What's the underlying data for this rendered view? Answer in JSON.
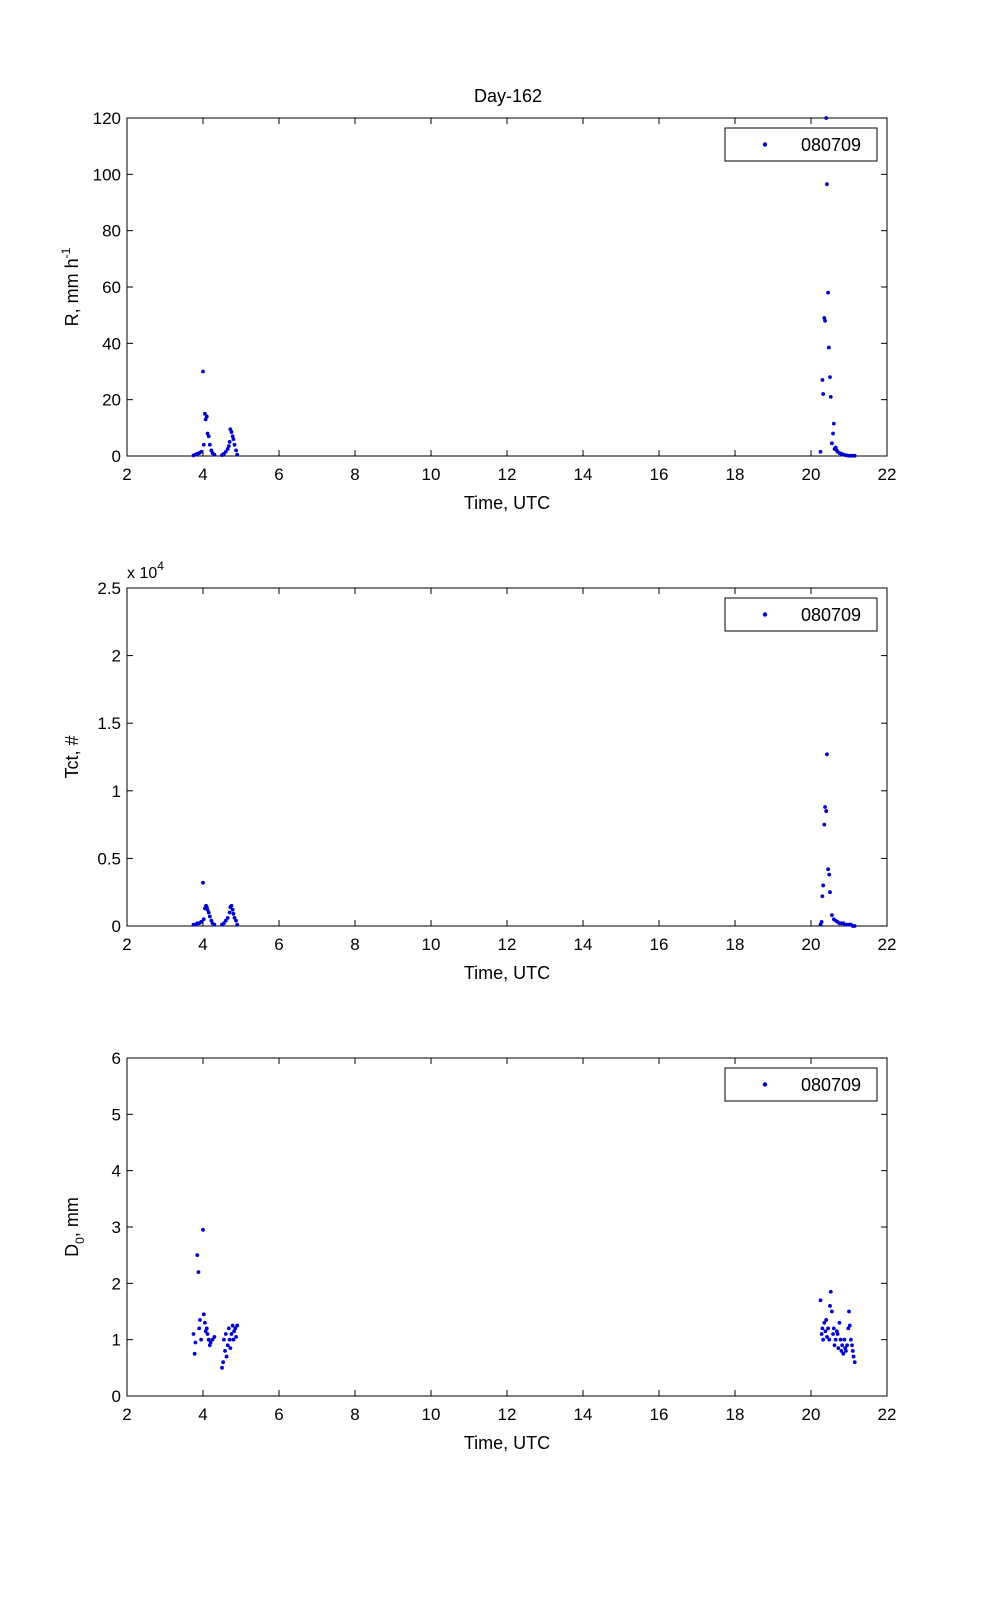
{
  "figure": {
    "title": "Day-162",
    "marker_color": "#0000cc"
  },
  "chart_data": [
    {
      "type": "scatter",
      "title": "Day-162",
      "xlabel": "Time, UTC",
      "ylabel_main": "R, mm h",
      "ylabel_sup": "-1",
      "xlim": [
        2,
        22
      ],
      "ylim": [
        0,
        120
      ],
      "xticks": [
        "2",
        "4",
        "6",
        "8",
        "10",
        "12",
        "14",
        "16",
        "18",
        "20",
        "22"
      ],
      "yticks": [
        "0",
        "20",
        "40",
        "60",
        "80",
        "100",
        "120"
      ],
      "exponent_label": "",
      "legend": "080709",
      "legend_position": "top-right",
      "grid": false,
      "series": [
        {
          "name": "080709",
          "x": [
            3.75,
            3.8,
            3.85,
            3.9,
            3.95,
            4.0,
            4.02,
            4.05,
            4.07,
            4.1,
            4.12,
            4.15,
            4.18,
            4.22,
            4.25,
            4.3,
            4.5,
            4.55,
            4.6,
            4.65,
            4.68,
            4.7,
            4.72,
            4.75,
            4.78,
            4.8,
            4.83,
            4.87,
            4.9,
            20.25,
            20.3,
            20.32,
            20.35,
            20.37,
            20.4,
            20.42,
            20.45,
            20.47,
            20.5,
            20.52,
            20.55,
            20.58,
            20.6,
            20.62,
            20.65,
            20.68,
            20.7,
            20.75,
            20.8,
            20.85,
            20.9,
            20.95,
            21.0,
            21.05,
            21.1,
            21.15
          ],
          "y": [
            0.2,
            0.5,
            0.8,
            1.0,
            1.5,
            30,
            4,
            15,
            13,
            14,
            8,
            7,
            4,
            2,
            1,
            0.5,
            0.3,
            0.8,
            1.5,
            2.5,
            3.5,
            5,
            9.5,
            8.5,
            7,
            6,
            4,
            2,
            0.5,
            1.5,
            27,
            22,
            49,
            48,
            120,
            96.5,
            58,
            38.5,
            28,
            21,
            4.5,
            8,
            11.5,
            2.5,
            3,
            2,
            1.5,
            1,
            0.8,
            0.5,
            0.3,
            0.2,
            0.1,
            0.1,
            0.1,
            0.1
          ]
        }
      ]
    },
    {
      "type": "scatter",
      "title": "",
      "xlabel": "Time, UTC",
      "ylabel_main": "Tct, #",
      "ylabel_sup": "",
      "xlim": [
        2,
        22
      ],
      "ylim": [
        0,
        2.5
      ],
      "xticks": [
        "2",
        "4",
        "6",
        "8",
        "10",
        "12",
        "14",
        "16",
        "18",
        "20",
        "22"
      ],
      "yticks": [
        "0",
        "0.5",
        "1",
        "1.5",
        "2",
        "2.5"
      ],
      "exponent_label": "x 10",
      "exponent_sup": "4",
      "legend": "080709",
      "legend_position": "top-right",
      "grid": false,
      "series": [
        {
          "name": "080709",
          "x": [
            3.75,
            3.8,
            3.85,
            3.9,
            3.95,
            4.0,
            4.02,
            4.05,
            4.08,
            4.1,
            4.12,
            4.15,
            4.18,
            4.22,
            4.25,
            4.3,
            4.5,
            4.55,
            4.6,
            4.65,
            4.7,
            4.72,
            4.75,
            4.78,
            4.8,
            4.83,
            4.87,
            4.9,
            20.25,
            20.28,
            20.3,
            20.32,
            20.35,
            20.37,
            20.4,
            20.42,
            20.45,
            20.48,
            20.5,
            20.55,
            20.6,
            20.65,
            20.7,
            20.75,
            20.8,
            20.85,
            20.9,
            20.95,
            21.0,
            21.05,
            21.1,
            21.15
          ],
          "y": [
            0.01,
            0.01,
            0.02,
            0.02,
            0.03,
            0.32,
            0.05,
            0.13,
            0.15,
            0.14,
            0.12,
            0.1,
            0.07,
            0.04,
            0.02,
            0.01,
            0.01,
            0.02,
            0.04,
            0.06,
            0.1,
            0.14,
            0.15,
            0.12,
            0.09,
            0.06,
            0.04,
            0.01,
            0.01,
            0.03,
            0.22,
            0.3,
            0.75,
            0.88,
            0.85,
            1.27,
            0.42,
            0.38,
            0.25,
            0.08,
            0.05,
            0.04,
            0.03,
            0.02,
            0.02,
            0.02,
            0.01,
            0.01,
            0.01,
            0.01,
            0.0,
            0.0
          ]
        }
      ]
    },
    {
      "type": "scatter",
      "title": "",
      "xlabel": "Time, UTC",
      "ylabel_main": "D",
      "ylabel_sub": "0",
      "ylabel_tail": ", mm",
      "xlim": [
        2,
        22
      ],
      "ylim": [
        0,
        6
      ],
      "xticks": [
        "2",
        "4",
        "6",
        "8",
        "10",
        "12",
        "14",
        "16",
        "18",
        "20",
        "22"
      ],
      "yticks": [
        "0",
        "1",
        "2",
        "3",
        "4",
        "5",
        "6"
      ],
      "exponent_label": "",
      "legend": "080709",
      "legend_position": "top-right",
      "grid": false,
      "series": [
        {
          "name": "080709",
          "x": [
            3.75,
            3.78,
            3.8,
            3.85,
            3.88,
            3.9,
            3.92,
            3.95,
            4.0,
            4.02,
            4.05,
            4.07,
            4.1,
            4.12,
            4.15,
            4.18,
            4.2,
            4.25,
            4.3,
            4.5,
            4.53,
            4.55,
            4.58,
            4.6,
            4.62,
            4.65,
            4.68,
            4.7,
            4.72,
            4.75,
            4.78,
            4.8,
            4.82,
            4.85,
            4.87,
            4.9,
            20.25,
            20.28,
            20.3,
            20.32,
            20.35,
            20.38,
            20.4,
            20.42,
            20.45,
            20.48,
            20.5,
            20.52,
            20.55,
            20.58,
            20.6,
            20.62,
            20.65,
            20.68,
            20.7,
            20.72,
            20.75,
            20.78,
            20.8,
            20.82,
            20.85,
            20.88,
            20.9,
            20.92,
            20.95,
            20.98,
            21.0,
            21.02,
            21.05,
            21.08,
            21.1,
            21.12,
            21.15
          ],
          "y": [
            1.1,
            0.75,
            0.95,
            2.5,
            2.2,
            1.2,
            1.35,
            1.0,
            2.95,
            1.45,
            1.3,
            1.15,
            1.2,
            1.1,
            1.0,
            0.9,
            0.95,
            1.0,
            1.05,
            0.5,
            0.6,
            1.0,
            0.8,
            1.1,
            0.7,
            0.9,
            1.2,
            1.0,
            0.85,
            1.1,
            1.25,
            1.0,
            1.15,
            1.2,
            1.05,
            1.25,
            1.7,
            1.1,
            1.2,
            1.0,
            1.3,
            1.15,
            1.35,
            1.05,
            1.2,
            1.0,
            1.6,
            1.85,
            1.5,
            1.1,
            1.2,
            0.9,
            1.0,
            1.15,
            1.1,
            0.85,
            1.3,
            1.0,
            0.8,
            0.9,
            0.75,
            1.0,
            0.85,
            0.8,
            0.9,
            1.2,
            1.5,
            1.25,
            1.0,
            0.9,
            0.8,
            0.7,
            0.6
          ]
        }
      ]
    }
  ]
}
